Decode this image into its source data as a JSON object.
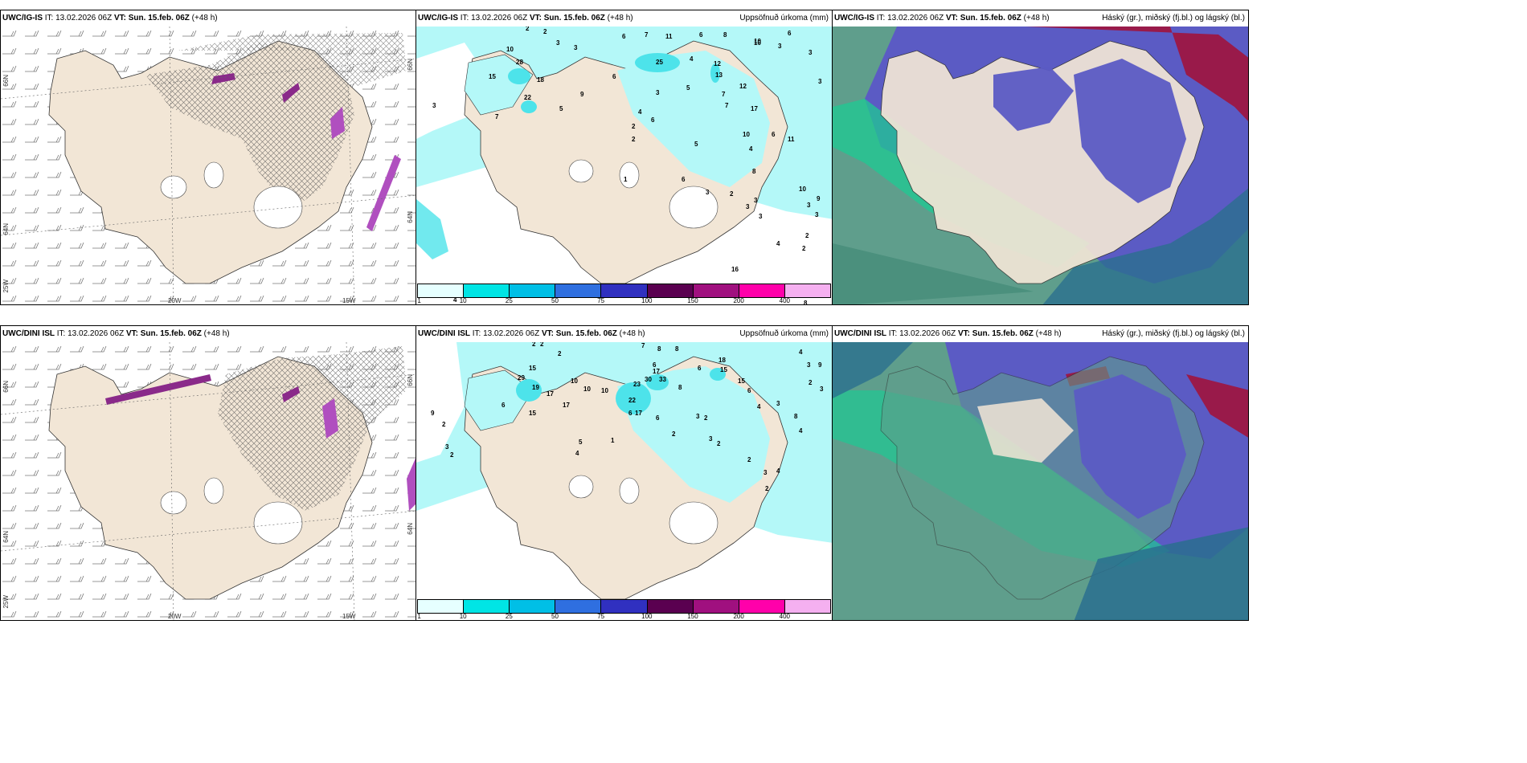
{
  "panels": [
    {
      "model": "UWC/IG-IS",
      "it_label": "IT: 13.02.2026 06Z",
      "vt_label": "VT: Sun. 15.feb. 06Z",
      "lead": "(+48 h)",
      "right_title": "",
      "lat_labels": [
        "66N",
        "64N",
        "25W"
      ],
      "lon_labels": [
        "20W",
        "15W"
      ],
      "right_labels": [
        "66N",
        "64N"
      ]
    },
    {
      "model": "UWC/IG-IS",
      "it_label": "IT: 13.02.2026 06Z",
      "vt_label": "VT: Sun. 15.feb. 06Z",
      "lead": "(+48 h)",
      "right_title": "Uppsöfnuð úrkoma (mm)",
      "numbers": [
        "2",
        "2",
        "3",
        "3",
        "6",
        "7",
        "11",
        "6",
        "8",
        "10",
        "6",
        "10",
        "28",
        "15",
        "18",
        "22",
        "3",
        "7",
        "5",
        "9",
        "25",
        "6",
        "4",
        "12",
        "13",
        "12",
        "10",
        "3",
        "5",
        "7",
        "7",
        "17",
        "10",
        "3",
        "3",
        "3",
        "6",
        "11",
        "2",
        "2",
        "4",
        "4",
        "6",
        "5",
        "1",
        "6",
        "3",
        "2",
        "8",
        "3",
        "3",
        "4",
        "2",
        "3",
        "2",
        "5",
        "16",
        "8",
        "7",
        "6",
        "4",
        "8",
        "3",
        "3",
        "9",
        "10",
        "3",
        "9",
        "3",
        "8",
        "2"
      ]
    },
    {
      "model": "UWC/IG-IS",
      "it_label": "IT: 13.02.2026 06Z",
      "vt_label": "VT: Sun. 15.feb. 06Z",
      "lead": "(+48 h)",
      "right_title": "Háský (gr.), miðský (fj.bl.) og lágský (bl.)"
    },
    {
      "model": "UWC/DINI ISL",
      "it_label": "IT: 13.02.2026 06Z",
      "vt_label": "VT: Sun. 15.feb. 06Z",
      "lead": "(+48 h)",
      "right_title": "",
      "lat_labels": [
        "66N",
        "64N",
        "25W"
      ],
      "lon_labels": [
        "20W",
        "15W"
      ],
      "right_labels": [
        "66N",
        "64N"
      ]
    },
    {
      "model": "UWC/DINI ISL",
      "it_label": "IT: 13.02.2026 06Z",
      "vt_label": "VT: Sun. 15.feb. 06Z",
      "lead": "(+48 h)",
      "right_title": "Uppsöfnuð úrkoma (mm)",
      "numbers": [
        "2",
        "2",
        "2",
        "7",
        "8",
        "8",
        "6",
        "6",
        "10",
        "10",
        "18",
        "15",
        "15",
        "17",
        "29",
        "19",
        "17",
        "6",
        "15",
        "17",
        "10",
        "30",
        "33",
        "23",
        "22",
        "17",
        "6",
        "6",
        "8",
        "15",
        "6",
        "4",
        "3",
        "3",
        "2",
        "2",
        "3",
        "2",
        "2",
        "3",
        "4",
        "2",
        "1",
        "5",
        "4",
        "9",
        "2",
        "3",
        "2",
        "4",
        "3",
        "9",
        "2",
        "3",
        "8",
        "4"
      ]
    },
    {
      "model": "UWC/DINI ISL",
      "it_label": "IT: 13.02.2026 06Z",
      "vt_label": "VT: Sun. 15.feb. 06Z",
      "lead": "(+48 h)",
      "right_title": "Háský (gr.), miðský (fj.bl.) og lágský (bl.)"
    }
  ],
  "colorbar": {
    "ticks": [
      "1",
      "10",
      "25",
      "50",
      "75",
      "100",
      "150",
      "200",
      "400"
    ],
    "colors": [
      "#e6ffff",
      "#00e5e5",
      "#00bfe6",
      "#2f6fe0",
      "#3030c0",
      "#5a0050",
      "#a0107f",
      "#ff00aa",
      "#f5b0f0"
    ]
  },
  "colors": {
    "land": "#f2e6d6",
    "precip_light": "#b4f8f8",
    "precip_mid": "#4de3ea",
    "cloud_high": "#5f9e8c",
    "cloud_mid": "#5b5bc4",
    "cloud_low": "#991a4a",
    "cloud_green": "#1ec993"
  }
}
